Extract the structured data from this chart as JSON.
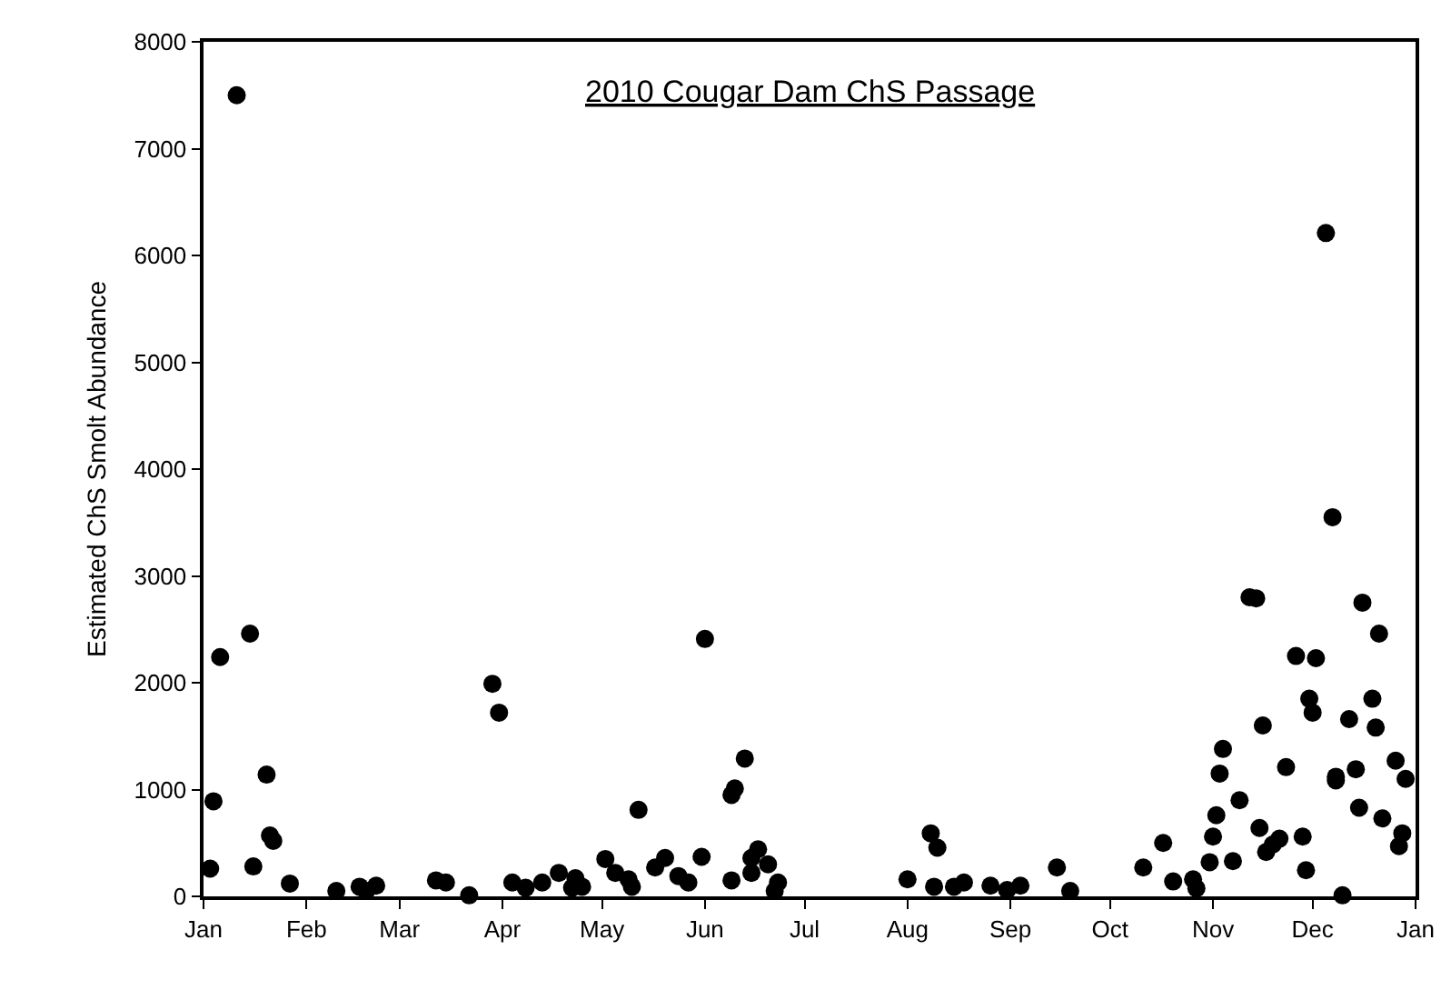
{
  "chart_data": {
    "type": "scatter",
    "title": "2010 Cougar Dam ChS Passage",
    "ylabel": "Estimated ChS Smolt Abundance",
    "x": [
      "2010-01-03",
      "2010-01-04",
      "2010-01-06",
      "2010-01-11",
      "2010-01-15",
      "2010-01-16",
      "2010-01-20",
      "2010-01-21",
      "2010-01-22",
      "2010-01-27",
      "2010-02-10",
      "2010-02-17",
      "2010-02-19",
      "2010-02-22",
      "2010-03-12",
      "2010-03-15",
      "2010-03-22",
      "2010-03-29",
      "2010-03-31",
      "2010-04-04",
      "2010-04-08",
      "2010-04-13",
      "2010-04-18",
      "2010-04-22",
      "2010-04-23",
      "2010-04-25",
      "2010-05-02",
      "2010-05-05",
      "2010-05-09",
      "2010-05-10",
      "2010-05-12",
      "2010-05-17",
      "2010-05-20",
      "2010-05-24",
      "2010-05-27",
      "2010-05-31",
      "2010-06-01",
      "2010-06-09",
      "2010-06-10",
      "2010-06-09",
      "2010-06-13",
      "2010-06-15",
      "2010-06-15",
      "2010-06-17",
      "2010-06-20",
      "2010-06-22",
      "2010-06-23",
      "2010-08-01",
      "2010-08-08",
      "2010-08-10",
      "2010-08-09",
      "2010-08-15",
      "2010-08-18",
      "2010-08-26",
      "2010-08-31",
      "2010-09-04",
      "2010-09-15",
      "2010-09-19",
      "2010-10-11",
      "2010-10-17",
      "2010-10-20",
      "2010-10-26",
      "2010-10-27",
      "2010-10-31",
      "2010-11-01",
      "2010-11-02",
      "2010-11-03",
      "2010-11-04",
      "2010-11-07",
      "2010-11-09",
      "2010-11-12",
      "2010-11-14",
      "2010-11-15",
      "2010-11-16",
      "2010-11-17",
      "2010-11-19",
      "2010-11-21",
      "2010-11-23",
      "2010-11-26",
      "2010-11-28",
      "2010-11-29",
      "2010-11-30",
      "2010-12-01",
      "2010-12-02",
      "2010-12-05",
      "2010-12-07",
      "2010-12-08",
      "2010-12-08",
      "2010-12-10",
      "2010-12-12",
      "2010-12-14",
      "2010-12-15",
      "2010-12-16",
      "2010-12-19",
      "2010-12-20",
      "2010-12-21",
      "2010-12-22",
      "2010-12-26",
      "2010-12-29",
      "2010-12-28",
      "2010-12-27"
    ],
    "series": [
      {
        "color": "#000000",
        "values": [
          260,
          890,
          2240,
          7500,
          2460,
          280,
          1140,
          570,
          520,
          120,
          50,
          90,
          50,
          100,
          150,
          130,
          10,
          1990,
          1720,
          130,
          80,
          130,
          220,
          80,
          170,
          90,
          350,
          220,
          160,
          90,
          810,
          270,
          360,
          190,
          130,
          370,
          2410,
          950,
          1010,
          150,
          1290,
          220,
          360,
          440,
          300,
          50,
          130,
          160,
          590,
          455,
          90,
          90,
          130,
          100,
          60,
          100,
          270,
          50,
          270,
          500,
          140,
          160,
          75,
          320,
          560,
          760,
          1150,
          1380,
          330,
          900,
          2800,
          2790,
          640,
          1600,
          415,
          485,
          540,
          1210,
          2250,
          560,
          245,
          1850,
          1720,
          2230,
          6210,
          3550,
          1120,
          1085,
          10,
          1660,
          1190,
          830,
          2750,
          1850,
          1580,
          2460,
          730,
          1270,
          1100,
          590,
          470
        ]
      }
    ],
    "xlim": [
      "2010-01-01",
      "2011-01-01"
    ],
    "xticks": [
      {
        "value": "2010-01-01",
        "label": "Jan"
      },
      {
        "value": "2010-02-01",
        "label": "Feb"
      },
      {
        "value": "2010-03-01",
        "label": "Mar"
      },
      {
        "value": "2010-04-01",
        "label": "Apr"
      },
      {
        "value": "2010-05-01",
        "label": "May"
      },
      {
        "value": "2010-06-01",
        "label": "Jun"
      },
      {
        "value": "2010-07-01",
        "label": "Jul"
      },
      {
        "value": "2010-08-01",
        "label": "Aug"
      },
      {
        "value": "2010-09-01",
        "label": "Sep"
      },
      {
        "value": "2010-10-01",
        "label": "Oct"
      },
      {
        "value": "2010-11-01",
        "label": "Nov"
      },
      {
        "value": "2010-12-01",
        "label": "Dec"
      },
      {
        "value": "2011-01-01",
        "label": "Jan"
      }
    ],
    "ylim": [
      0,
      8000
    ],
    "yticks": [
      0,
      1000,
      2000,
      3000,
      4000,
      5000,
      6000,
      7000,
      8000
    ],
    "grid": false,
    "legend": false,
    "marker": "circle"
  }
}
